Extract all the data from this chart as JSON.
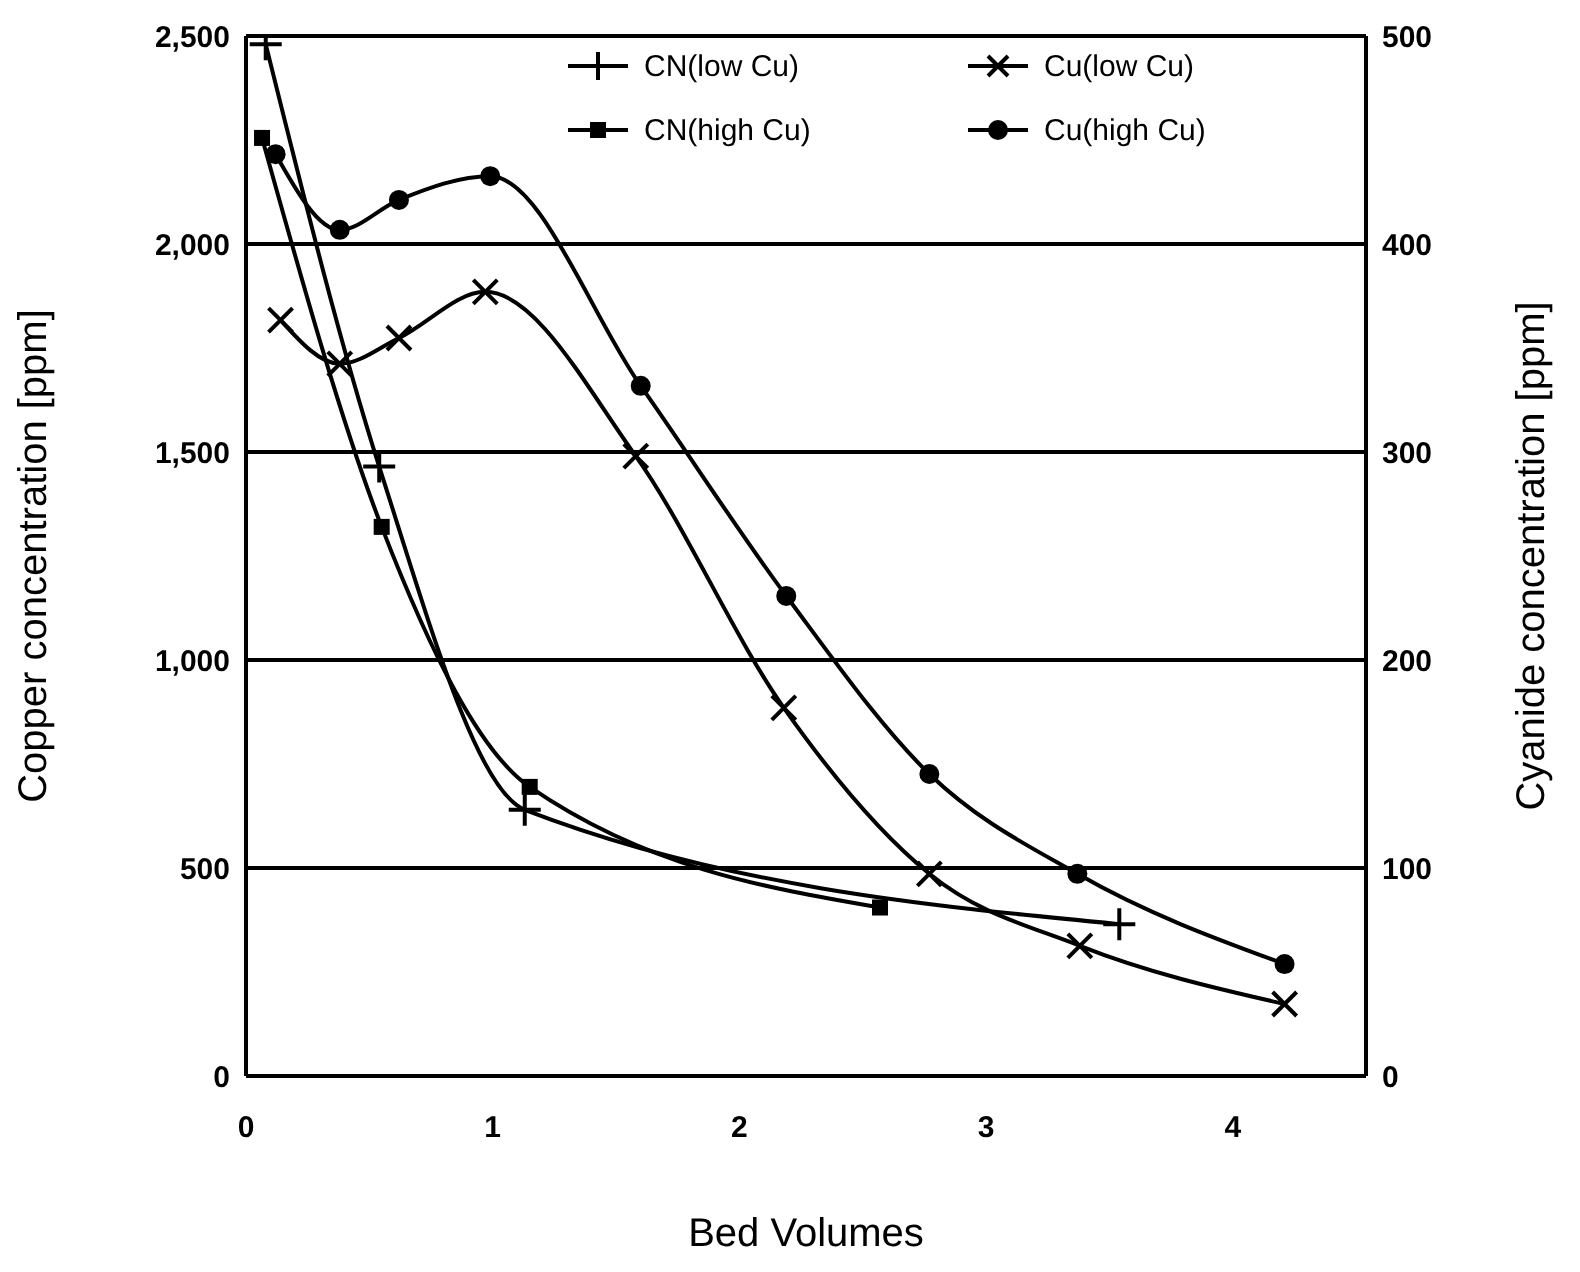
{
  "chart_data": {
    "type": "line",
    "xlabel": "Bed Volumes",
    "ylabel": "Copper concentration [ppm]",
    "y2label": "Cyanide concentration [ppm]",
    "xlim": [
      0,
      4.54
    ],
    "xticks": [
      0,
      1,
      2,
      3,
      4
    ],
    "ylim": [
      0,
      2500
    ],
    "yticks": [
      0,
      500,
      {
        "value": 1000,
        "label": "1,000"
      },
      {
        "value": 1500,
        "label": "1,500"
      },
      {
        "value": 2000,
        "label": "2,000"
      },
      {
        "value": 2500,
        "label": "2,500"
      }
    ],
    "y2lim": [
      0,
      500
    ],
    "y2ticks": [
      0,
      100,
      200,
      300,
      400,
      500
    ],
    "grid": "y",
    "legend": "top",
    "line_style": "solid",
    "series": [
      {
        "name": "CN(low Cu)",
        "color": "#000000",
        "axis": "y2",
        "marker": "cross",
        "x": [
          0.08,
          0.54,
          1.13,
          3.54
        ],
        "values": [
          496,
          293,
          128,
          73
        ]
      },
      {
        "name": "Cu(low Cu)",
        "color": "#000000",
        "marker": "x",
        "x": [
          0.14,
          0.38,
          0.62,
          0.97,
          1.58,
          2.18,
          2.77,
          3.38,
          4.21
        ],
        "values": [
          1817,
          1712,
          1774,
          1885,
          1490,
          885,
          486,
          313,
          173
        ]
      },
      {
        "name": "CN(high Cu)",
        "color": "#000000",
        "axis": "y2",
        "marker": "square",
        "x": [
          0.065,
          0.55,
          1.15,
          2.57
        ],
        "values": [
          451,
          264,
          139,
          81
        ]
      },
      {
        "name": "Cu(high Cu)",
        "color": "#000000",
        "marker": "circle",
        "x": [
          0.12,
          0.38,
          0.62,
          0.99,
          1.6,
          2.19,
          2.77,
          3.37,
          4.21
        ],
        "values": [
          2216,
          2034,
          2106,
          2163,
          1659,
          1154,
          726,
          486,
          269
        ]
      }
    ]
  }
}
